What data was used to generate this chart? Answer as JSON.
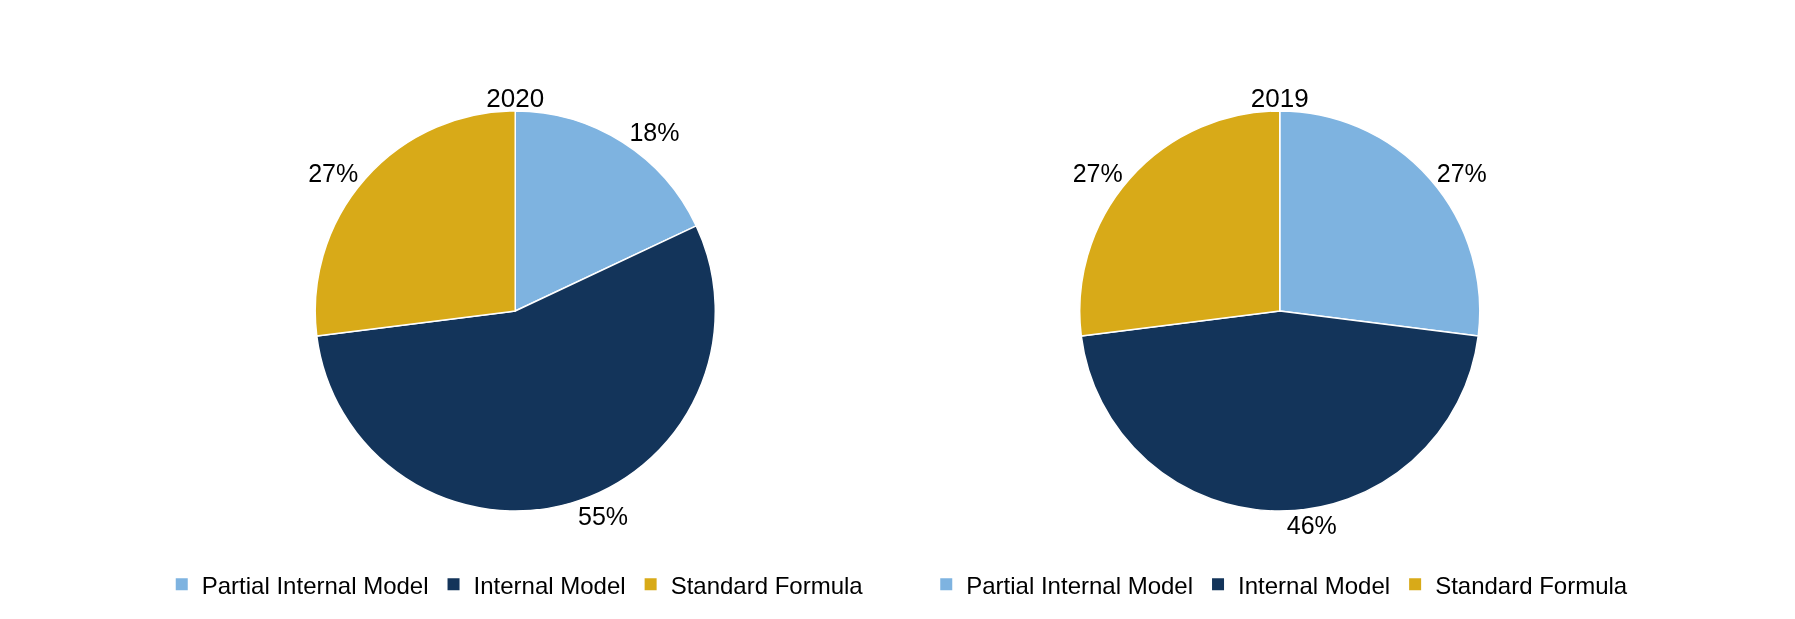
{
  "chart_data": [
    {
      "type": "pie",
      "title": "2020",
      "categories": [
        "Partial Internal Model",
        "Internal Model",
        "Standard Formula"
      ],
      "values": [
        18,
        55,
        27
      ],
      "colors": [
        "#7eb3e0",
        "#13345a",
        "#d8aa18"
      ],
      "value_labels": [
        "18%",
        "55%",
        "27%"
      ],
      "legend": "bottom"
    },
    {
      "type": "pie",
      "title": "2019",
      "categories": [
        "Partial Internal Model",
        "Internal Model",
        "Standard Formula"
      ],
      "values": [
        27,
        46,
        27
      ],
      "colors": [
        "#7eb3e0",
        "#13345a",
        "#d8aa18"
      ],
      "value_labels": [
        "27%",
        "46%",
        "27%"
      ],
      "legend": "bottom"
    }
  ]
}
